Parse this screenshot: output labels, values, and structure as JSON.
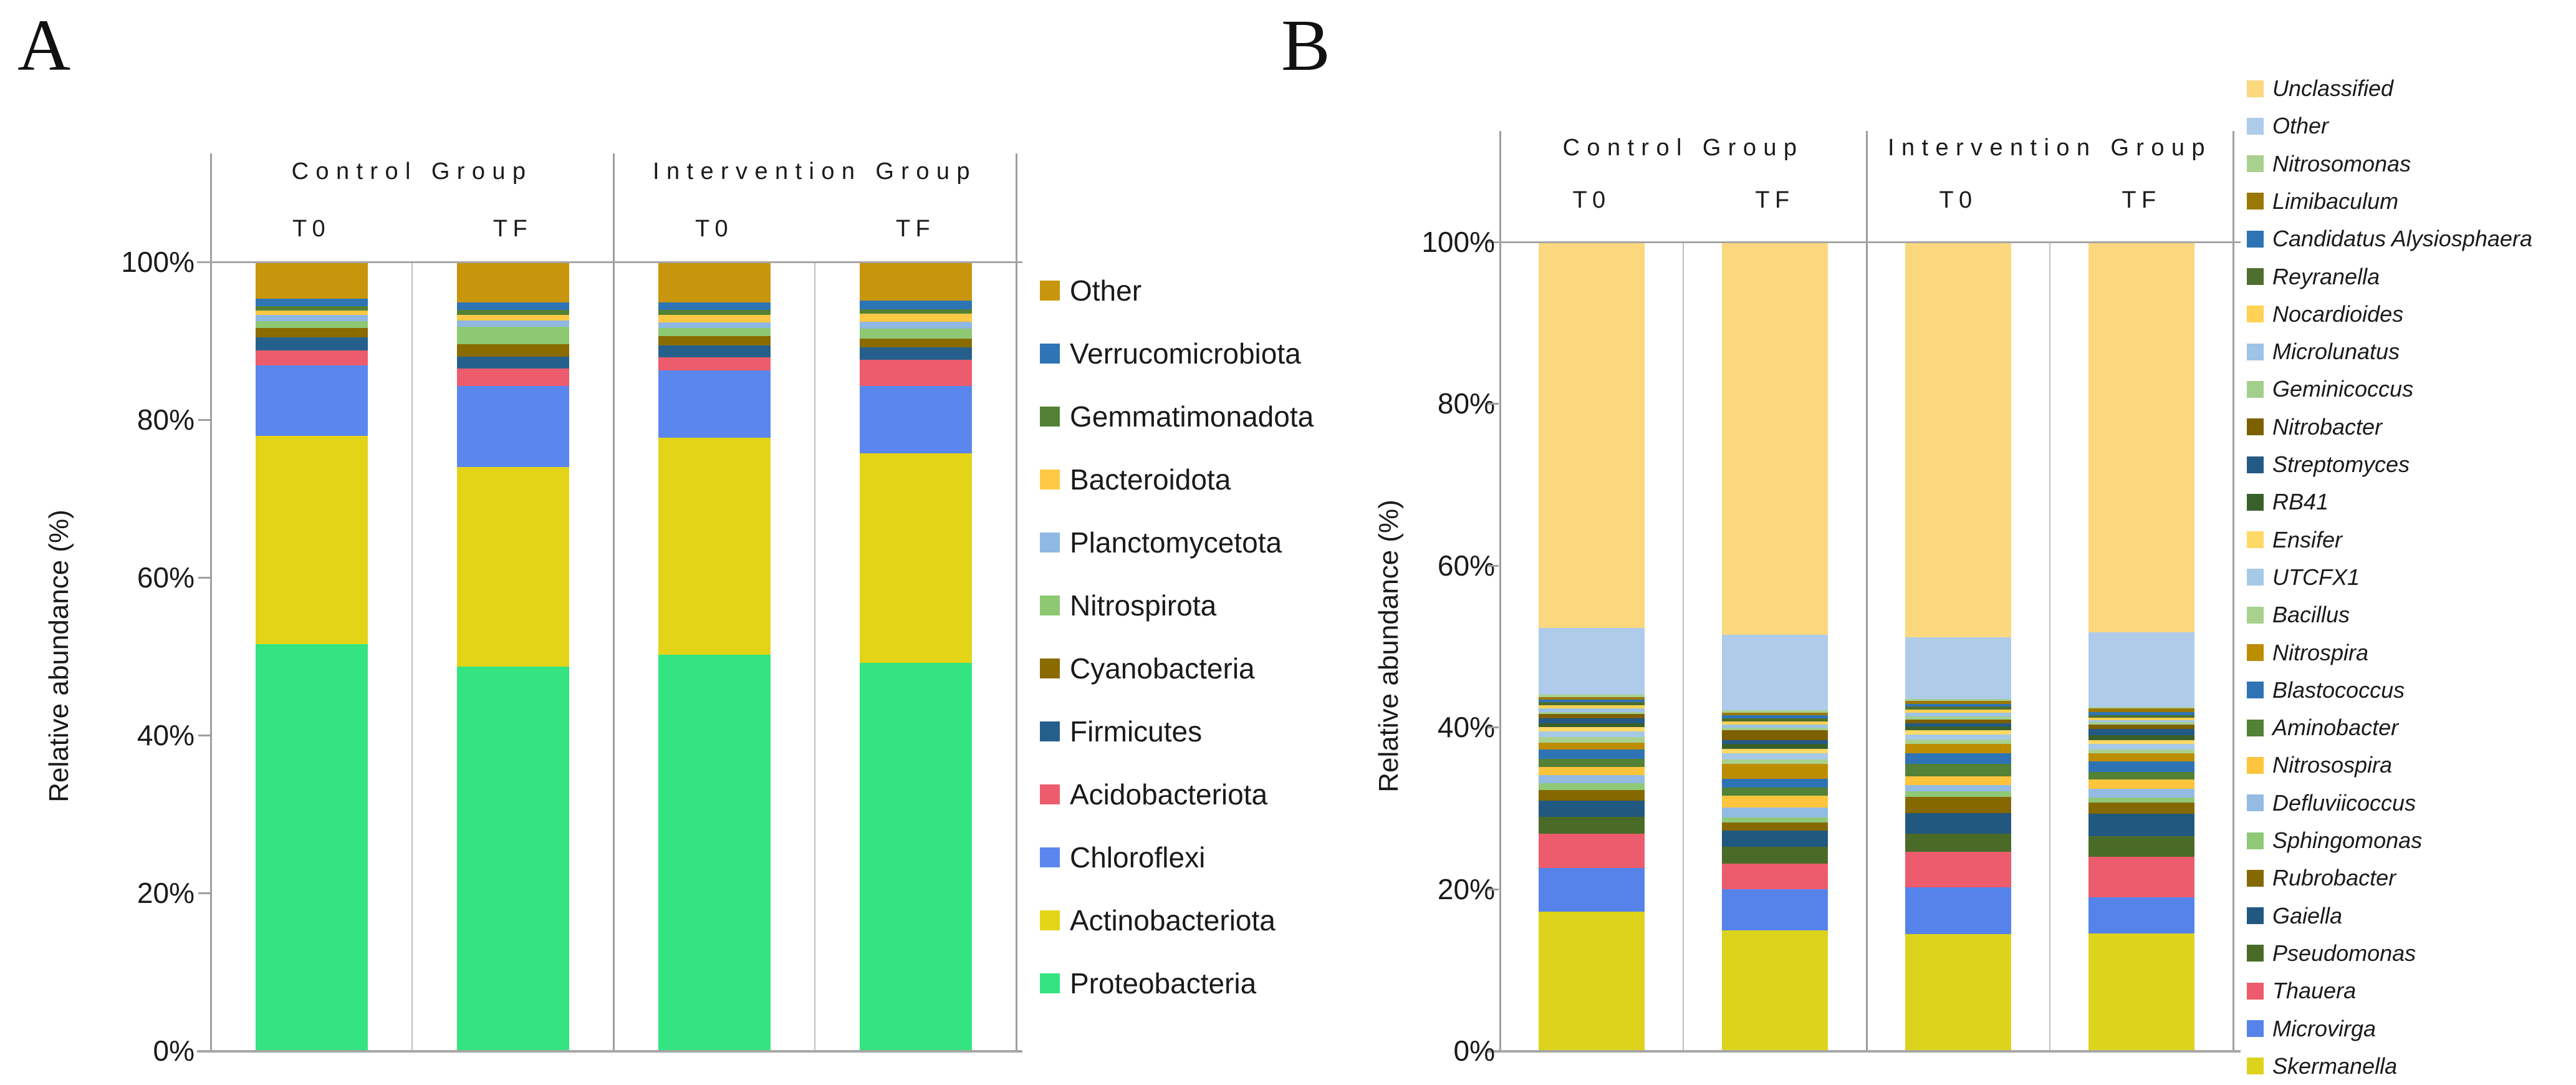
{
  "figure": {
    "panel_a_letter": "A",
    "panel_b_letter": "B",
    "background": "#FFFFFF",
    "gridline_color": "#A6A6A6",
    "axis_line_color": "#9E9E9E"
  },
  "axis": {
    "ylabel": "Relative abundance (%)",
    "yticks_top_to_bottom": [
      "100%",
      "80%",
      "60%",
      "40%",
      "20%",
      "0%"
    ],
    "group_headers": [
      "Control Group",
      "Intervention Group"
    ],
    "bar_labels": [
      "T0",
      "TF",
      "T0",
      "TF"
    ]
  },
  "chart_data": [
    {
      "type": "bar",
      "stacked": true,
      "panel": "A",
      "taxonomic_level": "phylum",
      "ylabel": "Relative abundance (%)",
      "ylim": [
        0,
        100
      ],
      "yticks_percent": [
        0,
        20,
        40,
        60,
        80,
        100
      ],
      "grid": false,
      "legend_position": "right",
      "group_headers": [
        "Control Group",
        "Intervention Group"
      ],
      "categories": [
        "Control T0",
        "Control TF",
        "Intervention T0",
        "Intervention TF"
      ],
      "bar_tick_labels": [
        "T0",
        "TF",
        "T0",
        "TF"
      ],
      "series_bottom_to_top": [
        {
          "name": "Proteobacteria",
          "color": "#33E480",
          "values": [
            51.5,
            48.7,
            50.2,
            49.2
          ]
        },
        {
          "name": "Actinobacteriota",
          "color": "#E3D417",
          "values": [
            26.4,
            25.3,
            27.5,
            26.5
          ]
        },
        {
          "name": "Chloroflexi",
          "color": "#5B86EE",
          "values": [
            9.0,
            10.3,
            8.5,
            8.6
          ]
        },
        {
          "name": "Acidobacteriota",
          "color": "#EC5C6D",
          "values": [
            1.9,
            2.2,
            1.7,
            3.3
          ]
        },
        {
          "name": "Firmicutes",
          "color": "#25608D",
          "values": [
            1.6,
            1.5,
            1.5,
            1.6
          ]
        },
        {
          "name": "Cyanobacteria",
          "color": "#8A6B00",
          "values": [
            1.2,
            1.6,
            1.2,
            1.1
          ]
        },
        {
          "name": "Nitrospirota",
          "color": "#8DC973",
          "values": [
            0.9,
            2.2,
            1.0,
            1.2
          ]
        },
        {
          "name": "Planctomycetota",
          "color": "#8FB8E2",
          "values": [
            0.8,
            0.8,
            0.7,
            0.9
          ]
        },
        {
          "name": "Bacteroidota",
          "color": "#FFC845",
          "values": [
            0.5,
            0.7,
            1.0,
            1.0
          ]
        },
        {
          "name": "Gemmatimonadota",
          "color": "#538135",
          "values": [
            0.6,
            0.6,
            0.6,
            0.6
          ]
        },
        {
          "name": "Verrucomicrobiota",
          "color": "#2E75B6",
          "values": [
            0.9,
            1.0,
            1.0,
            1.1
          ]
        },
        {
          "name": "Other",
          "color": "#C8960C",
          "values": [
            4.7,
            5.1,
            5.1,
            4.9
          ]
        }
      ]
    },
    {
      "type": "bar",
      "stacked": true,
      "panel": "B",
      "taxonomic_level": "genus",
      "ylabel": "Relative abundance (%)",
      "ylim": [
        0,
        100
      ],
      "yticks_percent": [
        0,
        20,
        40,
        60,
        80,
        100
      ],
      "grid": false,
      "legend_position": "right",
      "legend_italic": true,
      "group_headers": [
        "Control Group",
        "Intervention Group"
      ],
      "categories": [
        "Control T0",
        "Control TF",
        "Intervention T0",
        "Intervention TF"
      ],
      "bar_tick_labels": [
        "T0",
        "TF",
        "T0",
        "TF"
      ],
      "series_bottom_to_top": [
        {
          "name": "Skermanella",
          "color": "#DDD31C",
          "values": [
            17.2,
            14.9,
            14.4,
            14.5
          ]
        },
        {
          "name": "Microvirga",
          "color": "#5583EA",
          "values": [
            5.4,
            5.1,
            5.8,
            4.5
          ]
        },
        {
          "name": "Thauera",
          "color": "#EC5C6D",
          "values": [
            4.2,
            3.1,
            4.4,
            5.0
          ]
        },
        {
          "name": "Pseudomonas",
          "color": "#4A6B28",
          "values": [
            2.1,
            2.1,
            2.3,
            2.5
          ]
        },
        {
          "name": "Gaiella",
          "color": "#21587F",
          "values": [
            2.0,
            2.0,
            2.5,
            2.8
          ]
        },
        {
          "name": "Rubrobacter",
          "color": "#866800",
          "values": [
            1.3,
            1.0,
            2.0,
            1.4
          ]
        },
        {
          "name": "Sphingomonas",
          "color": "#8FC977",
          "values": [
            0.9,
            0.6,
            0.7,
            0.6
          ]
        },
        {
          "name": "Defluviicoccus",
          "color": "#93BBE4",
          "values": [
            1.0,
            1.3,
            0.8,
            1.1
          ]
        },
        {
          "name": "Nitrosospira",
          "color": "#FFC43D",
          "values": [
            1.0,
            1.4,
            1.1,
            1.1
          ]
        },
        {
          "name": "Aminobacter",
          "color": "#538135",
          "values": [
            1.0,
            1.0,
            1.5,
            1.0
          ]
        },
        {
          "name": "Blastococcus",
          "color": "#2E74B5",
          "values": [
            1.1,
            1.1,
            1.3,
            1.3
          ]
        },
        {
          "name": "Nitrospira",
          "color": "#BD8D00",
          "values": [
            0.9,
            1.9,
            1.2,
            1.0
          ]
        },
        {
          "name": "Bacillus",
          "color": "#A9D18E",
          "values": [
            0.7,
            0.5,
            0.5,
            0.4
          ]
        },
        {
          "name": "UTCFX1",
          "color": "#A6C9E8",
          "values": [
            0.7,
            0.8,
            0.6,
            0.7
          ]
        },
        {
          "name": "Ensifer",
          "color": "#FFD966",
          "values": [
            0.5,
            0.5,
            0.6,
            0.5
          ]
        },
        {
          "name": "RB41",
          "color": "#39602A",
          "values": [
            0.5,
            0.6,
            0.4,
            0.6
          ]
        },
        {
          "name": "Streptomyces",
          "color": "#235A85",
          "values": [
            0.6,
            0.5,
            0.4,
            0.8
          ]
        },
        {
          "name": "Nitrobacter",
          "color": "#7C6000",
          "values": [
            0.5,
            1.2,
            0.5,
            0.5
          ]
        },
        {
          "name": "Geminicoccus",
          "color": "#A2CF8C",
          "values": [
            0.3,
            0.3,
            0.4,
            0.3
          ]
        },
        {
          "name": "Microlunatus",
          "color": "#9DC3E6",
          "values": [
            0.4,
            0.4,
            0.4,
            0.3
          ]
        },
        {
          "name": "Nocardioides",
          "color": "#FFD154",
          "values": [
            0.4,
            0.4,
            0.4,
            0.3
          ]
        },
        {
          "name": "Reyranella",
          "color": "#4E6F2D",
          "values": [
            0.4,
            0.4,
            0.4,
            0.3
          ]
        },
        {
          "name": "Candidatus Alysiosphaera",
          "color": "#2E74B5",
          "values": [
            0.3,
            0.4,
            0.3,
            0.4
          ]
        },
        {
          "name": "Limibaculum",
          "color": "#9A7807",
          "values": [
            0.3,
            0.3,
            0.4,
            0.4
          ]
        },
        {
          "name": "Nitrosomonas",
          "color": "#A9D18E",
          "values": [
            0.3,
            0.3,
            0.2,
            0.2
          ]
        },
        {
          "name": "Other",
          "color": "#AECBEA",
          "values": [
            8.3,
            9.3,
            7.7,
            9.2
          ]
        },
        {
          "name": "Unclassified",
          "color": "#FBD87E",
          "values": [
            47.7,
            48.6,
            48.9,
            48.3
          ]
        }
      ]
    }
  ]
}
